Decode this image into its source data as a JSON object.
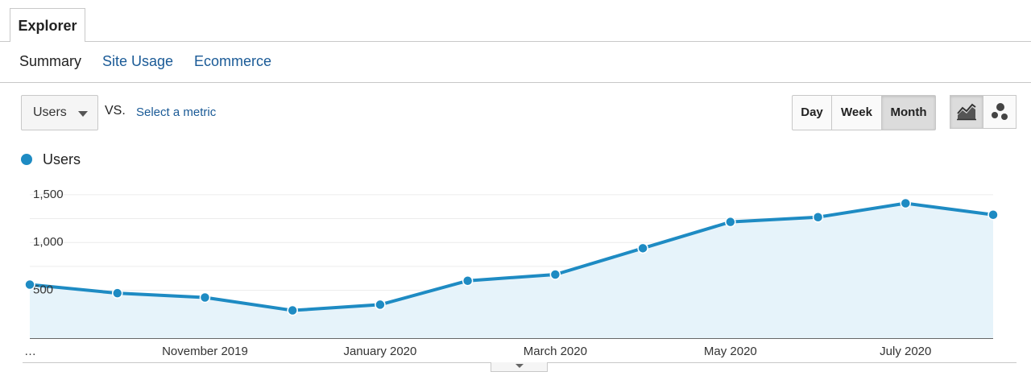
{
  "tabs": [
    {
      "label": "Explorer",
      "active": true
    }
  ],
  "subnav": {
    "items": [
      {
        "label": "Summary",
        "active": true
      },
      {
        "label": "Site Usage",
        "active": false
      },
      {
        "label": "Ecommerce",
        "active": false
      }
    ]
  },
  "toolbar": {
    "metric_select": "Users",
    "vs_label": "VS.",
    "select_metric_link": "Select a metric",
    "granularity": [
      "Day",
      "Week",
      "Month"
    ],
    "granularity_selected": "Month",
    "view_buttons": [
      {
        "icon": "line-chart-icon",
        "selected": true
      },
      {
        "icon": "motion-chart-icon",
        "selected": false
      }
    ]
  },
  "colors": {
    "series": "#1e8bc3",
    "area": "#e6f3fa",
    "link": "#1a5a96"
  },
  "chart_data": {
    "type": "area",
    "legend": "Users",
    "y_ticks": [
      "500",
      "1,000",
      "1,500"
    ],
    "ylim": [
      0,
      1650
    ],
    "x_tick_labels": [
      "…",
      "November 2019",
      "January 2020",
      "March 2020",
      "May 2020",
      "July 2020"
    ],
    "x": [
      "2019-09",
      "2019-10",
      "2019-11",
      "2019-12",
      "2020-01",
      "2020-02",
      "2020-03",
      "2020-04",
      "2020-05",
      "2020-06",
      "2020-07",
      "2020-08"
    ],
    "series": [
      {
        "name": "Users",
        "values": [
          560,
          470,
          425,
          290,
          350,
          600,
          665,
          940,
          1215,
          1265,
          1410,
          1290
        ]
      }
    ],
    "grid": true
  }
}
